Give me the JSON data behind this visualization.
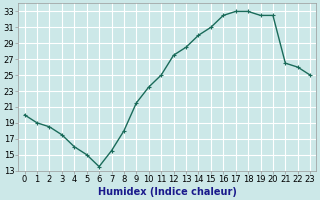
{
  "x": [
    0,
    1,
    2,
    3,
    4,
    5,
    6,
    7,
    8,
    9,
    10,
    11,
    12,
    13,
    14,
    15,
    16,
    17,
    18,
    19,
    20,
    21,
    22,
    23
  ],
  "y": [
    20,
    19,
    18.5,
    17.5,
    16,
    15,
    13.5,
    15.5,
    18,
    21.5,
    23.5,
    25,
    27.5,
    28.5,
    30,
    31,
    32.5,
    33,
    33,
    32.5,
    32.5,
    26.5,
    26,
    25
  ],
  "line_color": "#1a6b5a",
  "marker": "+",
  "marker_size": 3,
  "linewidth": 1.0,
  "xlabel": "Humidex (Indice chaleur)",
  "xlim": [
    -0.5,
    23.5
  ],
  "ylim": [
    13,
    34
  ],
  "yticks": [
    13,
    15,
    17,
    19,
    21,
    23,
    25,
    27,
    29,
    31,
    33
  ],
  "xticks": [
    0,
    1,
    2,
    3,
    4,
    5,
    6,
    7,
    8,
    9,
    10,
    11,
    12,
    13,
    14,
    15,
    16,
    17,
    18,
    19,
    20,
    21,
    22,
    23
  ],
  "background_color": "#cce8e8",
  "grid_color": "#ffffff",
  "xlabel_fontsize": 7,
  "tick_fontsize": 6
}
